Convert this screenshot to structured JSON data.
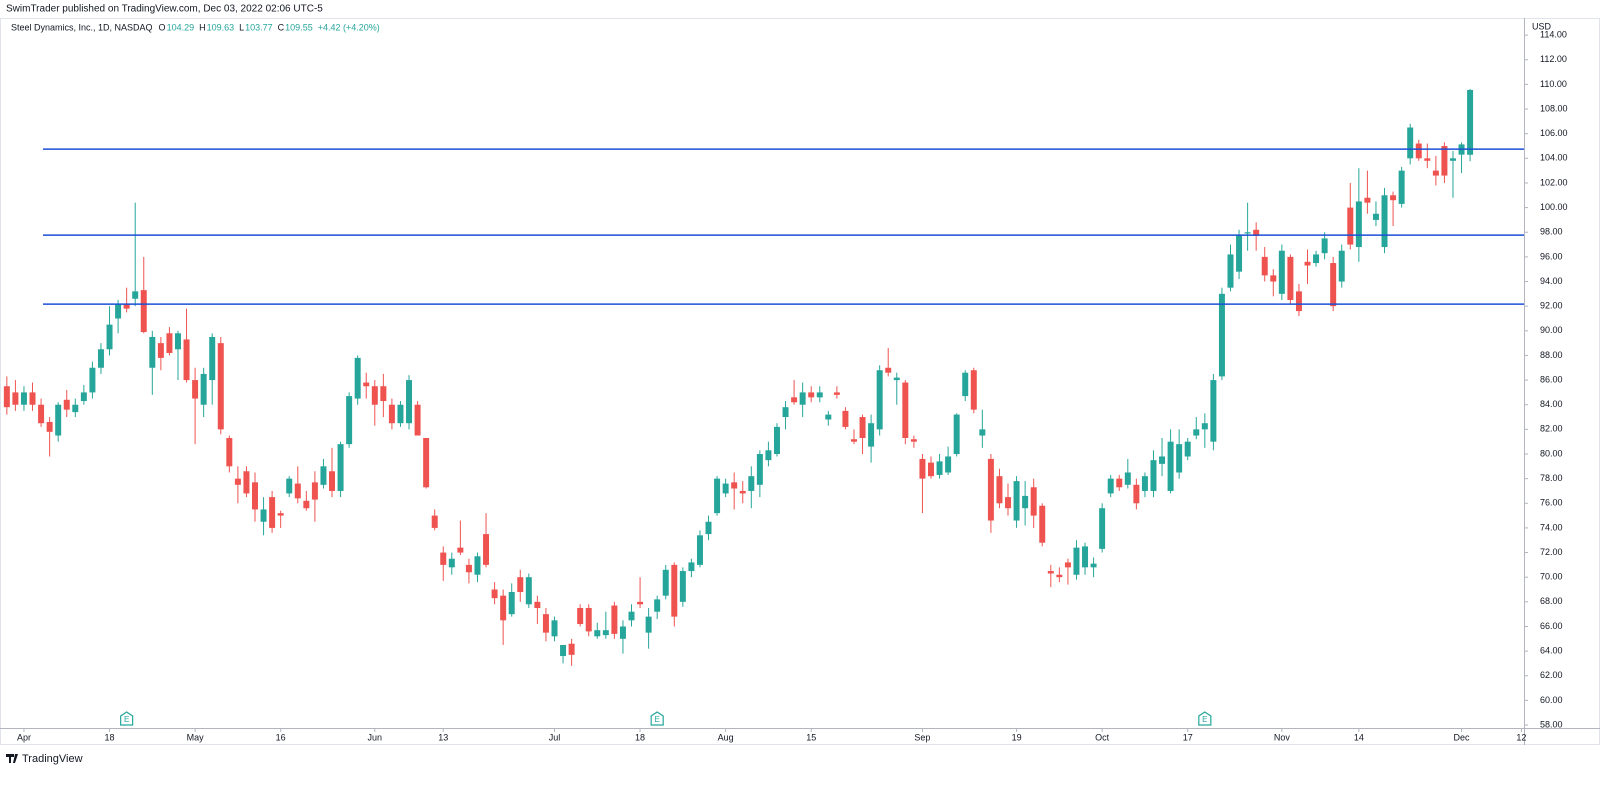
{
  "header": "SwimTrader published on TradingView.com, Dec 03, 2022 02:06 UTC-5",
  "footer": "TradingView",
  "chart_data": {
    "type": "candlestick",
    "title": "Steel Dynamics, Inc., 1D, NASDAQ",
    "legend_ohlc": [
      {
        "label": "O",
        "value": 104.29
      },
      {
        "label": "H",
        "value": 109.63
      },
      {
        "label": "L",
        "value": 103.77
      },
      {
        "label": "C",
        "value": 109.55
      }
    ],
    "change": "+4.42 (+4.20%)",
    "currency": "USD",
    "up_color": "#26a69a",
    "down_color": "#ef5350",
    "level_color": "#1c4fd6",
    "open": [
      85.5,
      85,
      84,
      85,
      84,
      82.6,
      81.5,
      84.4,
      83.4,
      84.3,
      85,
      87,
      88.5,
      91,
      92.2,
      92.6,
      93.3,
      87,
      89,
      89.8,
      88.5,
      89.3,
      86,
      84,
      86,
      89,
      81.3,
      78,
      78.6,
      77.7,
      74.5,
      76.5,
      75.2,
      76.8,
      77.6,
      76.2,
      77.7,
      77.5,
      78.6,
      77,
      80.8,
      84.5,
      85.8,
      85.5,
      85.5,
      84,
      82.5,
      82.5,
      84,
      81.3,
      75,
      72,
      70.8,
      72.4,
      71,
      70.2,
      73.5,
      69,
      68.5,
      67,
      70,
      67.8,
      68,
      67,
      65.2,
      63.6,
      64.6,
      67.5,
      67.5,
      65.2,
      65.3,
      67.7,
      65,
      66.5,
      68,
      65.5,
      67.2,
      68.5,
      71,
      68,
      70.5,
      71,
      73.5,
      75.2,
      76.8,
      77.7,
      77,
      77,
      77.5,
      79.5,
      80,
      83,
      84.6,
      84,
      85,
      84.6,
      82.8,
      85,
      83.5,
      81.2,
      83,
      80.6,
      82,
      87,
      86,
      85.8,
      81.2,
      79.6,
      79.3,
      78.3,
      78.5,
      80,
      84.7,
      86.8,
      81.5,
      79.6,
      78.2,
      76.5,
      74.6,
      75.6,
      77.3,
      75.8,
      70.5,
      70.2,
      71.2,
      70.2,
      70.8,
      70.8,
      72.3,
      76.8,
      78,
      77.5,
      77.5,
      77,
      77,
      79.2,
      77,
      78.5,
      79.8,
      81.5,
      82,
      81,
      86.3,
      93.5,
      94.8,
      97.9,
      98.2,
      96,
      94.5,
      93,
      96,
      93.2,
      95.6,
      95.5,
      96.3,
      95.5,
      94,
      100,
      96.8,
      100.8,
      99,
      96.8,
      101,
      100.3,
      104,
      105.2,
      104,
      103,
      105,
      103.8,
      104.3,
      104.29
    ],
    "high": [
      86.3,
      86,
      85.5,
      85.8,
      84.5,
      83,
      84.2,
      85.2,
      84.5,
      85.6,
      87.5,
      89,
      92,
      92.5,
      93.5,
      100.4,
      96,
      90,
      89.5,
      90.3,
      90,
      91.8,
      87,
      87,
      89.8,
      89.5,
      81.5,
      79,
      79,
      78.5,
      76.5,
      77,
      75.4,
      78.2,
      79,
      77,
      78.6,
      79.6,
      80.5,
      81,
      85,
      88,
      86.6,
      86,
      86.5,
      84.5,
      84.3,
      86.4,
      84.3,
      81.3,
      75.5,
      72.5,
      72,
      74.6,
      71.5,
      72,
      75.2,
      69.6,
      69,
      69.5,
      70.6,
      70.3,
      68.5,
      67.5,
      66.8,
      64.5,
      65,
      67.8,
      67.8,
      66.3,
      67.2,
      68,
      66.5,
      67.8,
      70,
      67.5,
      68.5,
      71,
      71.2,
      70.8,
      71.5,
      73.8,
      75,
      78.2,
      78,
      78.5,
      77.8,
      79,
      80.3,
      81,
      82.5,
      84.3,
      86,
      85.8,
      85.5,
      85.5,
      83.5,
      85.5,
      83.8,
      82,
      83.2,
      83.2,
      87.2,
      88.6,
      86.6,
      86,
      81.5,
      80,
      79.8,
      80,
      80.6,
      83.3,
      86.8,
      87,
      83.6,
      80,
      78.8,
      77.6,
      78.2,
      77.8,
      78,
      76,
      71,
      70.8,
      71.5,
      73,
      72.8,
      71.6,
      76,
      78.3,
      78.3,
      79.6,
      78,
      78.5,
      80.3,
      81.3,
      82,
      82,
      81.3,
      83,
      83.3,
      86.5,
      93.5,
      97,
      98.2,
      100.4,
      98.8,
      96.8,
      95,
      97,
      96.2,
      93.8,
      96.6,
      96.5,
      98,
      96,
      97,
      102,
      103.2,
      103,
      100.5,
      101.6,
      101.3,
      103.3,
      106.8,
      105.5,
      105.2,
      104.2,
      105.3,
      104.6,
      105.3,
      109.63
    ],
    "low": [
      83.2,
      83.5,
      83.5,
      83.5,
      82.2,
      79.8,
      81,
      83,
      83,
      84,
      84.5,
      86.5,
      88,
      89.8,
      91.5,
      92,
      89.8,
      84.8,
      86.8,
      88,
      86,
      85.8,
      80.8,
      83,
      84,
      81.6,
      78.5,
      76,
      76.5,
      74.5,
      73.4,
      73.6,
      74,
      76.5,
      76,
      75.4,
      74.5,
      77.2,
      76.5,
      76.5,
      80.5,
      84,
      84.5,
      82.3,
      83,
      82,
      82.2,
      82,
      81.5,
      77.2,
      73.8,
      69.7,
      70.2,
      71.8,
      69.5,
      69.6,
      70.8,
      67.8,
      64.5,
      66.8,
      68,
      67.5,
      66.2,
      64.8,
      64.8,
      63,
      62.8,
      66,
      65.2,
      65,
      65,
      65,
      63.8,
      66,
      67.5,
      64.2,
      66.6,
      68.2,
      66,
      67.6,
      70,
      70.8,
      73,
      75,
      76.5,
      75.5,
      76,
      75.6,
      76.5,
      79,
      79.8,
      82,
      84,
      83,
      84.2,
      84.2,
      82.3,
      84.5,
      82,
      80.8,
      80,
      79.3,
      81.5,
      86.3,
      84,
      80.8,
      80.5,
      75.2,
      78,
      78,
      78.3,
      79.8,
      84.3,
      83.3,
      80.5,
      73.6,
      75.6,
      75,
      74,
      74.2,
      74,
      72.5,
      69.2,
      69.6,
      69.4,
      69.8,
      70.2,
      70,
      72,
      76.5,
      77,
      77.2,
      75.5,
      76.5,
      76.5,
      78.2,
      76.8,
      78,
      79.5,
      81.2,
      80.5,
      80.3,
      86,
      93.2,
      94.2,
      96.5,
      96.5,
      94,
      92.8,
      92.5,
      92.2,
      91.2,
      93.8,
      95.2,
      95.8,
      91.6,
      93.5,
      96.6,
      95.6,
      99.5,
      98.5,
      96.3,
      98.5,
      100,
      103.5,
      103.8,
      103.2,
      101.8,
      102,
      100.8,
      102.8,
      103.77
    ],
    "close": [
      83.8,
      84,
      85,
      84,
      82.5,
      81.8,
      84,
      83.6,
      84,
      85,
      87,
      88.5,
      90.5,
      92.2,
      91.8,
      93.2,
      89.9,
      89.5,
      87.8,
      88.2,
      89.8,
      86,
      84.5,
      86.5,
      89.5,
      82,
      79,
      77.5,
      76.8,
      75.5,
      75.5,
      74,
      75,
      78,
      76.4,
      75.6,
      76.3,
      79,
      77,
      80.8,
      84.7,
      87.8,
      85.5,
      84,
      84.3,
      82.5,
      84,
      86,
      81.5,
      77.3,
      74,
      71,
      71.5,
      72,
      70.4,
      71.7,
      71,
      68.3,
      66.5,
      68.8,
      68.8,
      70,
      67.5,
      65.5,
      66.5,
      64.5,
      63.7,
      66.2,
      65.6,
      65.7,
      65.7,
      65.4,
      66,
      67.2,
      67.8,
      66.8,
      68.2,
      70.6,
      66.8,
      70.5,
      71.2,
      73.4,
      74.5,
      78,
      77.6,
      77.2,
      76.8,
      78.2,
      80,
      80.3,
      82.2,
      83.8,
      84.2,
      85,
      84.6,
      85,
      83.2,
      84.8,
      82.2,
      81,
      81.3,
      82.5,
      86.8,
      86.6,
      86.2,
      81.3,
      81,
      78,
      78.2,
      79.4,
      79.8,
      83.2,
      86.6,
      83.6,
      82,
      74.6,
      76,
      75.6,
      77.8,
      76.6,
      75,
      72.8,
      70.3,
      70,
      70.8,
      72.4,
      72.5,
      71.1,
      75.6,
      78,
      77.3,
      78.5,
      76,
      78.2,
      79.5,
      79.8,
      81,
      80.8,
      81,
      82,
      82.5,
      86,
      93,
      96.2,
      97.8,
      98,
      97.7,
      94.5,
      94,
      96.5,
      92.5,
      91.6,
      95.3,
      96.2,
      97.5,
      92,
      96.5,
      97,
      100.5,
      100.4,
      99.5,
      101,
      100.6,
      103,
      106.5,
      104,
      103.8,
      102.6,
      102.6,
      104,
      105.13,
      109.55
    ],
    "levels": [
      104.75,
      97.77,
      92.17
    ],
    "earnings": [
      {
        "index": 14,
        "label": "E"
      },
      {
        "index": 76,
        "label": "E"
      },
      {
        "index": 140,
        "label": "E"
      }
    ],
    "ylim": [
      57.76,
      115.39
    ],
    "yticks": [
      {
        "value": 58,
        "label": "58.00"
      },
      {
        "value": 60,
        "label": "60.00"
      },
      {
        "value": 62,
        "label": "62.00"
      },
      {
        "value": 64,
        "label": "64.00"
      },
      {
        "value": 66,
        "label": "66.00"
      },
      {
        "value": 68,
        "label": "68.00"
      },
      {
        "value": 70,
        "label": "70.00"
      },
      {
        "value": 72,
        "label": "72.00"
      },
      {
        "value": 74,
        "label": "74.00"
      },
      {
        "value": 76,
        "label": "76.00"
      },
      {
        "value": 78,
        "label": "78.00"
      },
      {
        "value": 80,
        "label": "80.00"
      },
      {
        "value": 82,
        "label": "82.00"
      },
      {
        "value": 84,
        "label": "84.00"
      },
      {
        "value": 86,
        "label": "86.00"
      },
      {
        "value": 88,
        "label": "88.00"
      },
      {
        "value": 90,
        "label": "90.00"
      },
      {
        "value": 92,
        "label": "92.00"
      },
      {
        "value": 94,
        "label": "94.00"
      },
      {
        "value": 96,
        "label": "96.00"
      },
      {
        "value": 98,
        "label": "98.00"
      },
      {
        "value": 100,
        "label": "100.00"
      },
      {
        "value": 102,
        "label": "102.00"
      },
      {
        "value": 104,
        "label": "104.00"
      },
      {
        "value": 106,
        "label": "106.00"
      },
      {
        "value": 108,
        "label": "108.00"
      },
      {
        "value": 110,
        "label": "110.00"
      },
      {
        "value": 112,
        "label": "112.00"
      },
      {
        "value": 114,
        "label": "114.00"
      }
    ],
    "xlim": [
      -0.8,
      177.3
    ],
    "xticks": [
      {
        "value": 2,
        "label": "Apr"
      },
      {
        "value": 12,
        "label": "18"
      },
      {
        "value": 22,
        "label": "May"
      },
      {
        "value": 32,
        "label": "16"
      },
      {
        "value": 43,
        "label": "Jun"
      },
      {
        "value": 51,
        "label": "13"
      },
      {
        "value": 64,
        "label": "Jul"
      },
      {
        "value": 74,
        "label": "18"
      },
      {
        "value": 84,
        "label": "Aug"
      },
      {
        "value": 94,
        "label": "15"
      },
      {
        "value": 107,
        "label": "Sep"
      },
      {
        "value": 118,
        "label": "19"
      },
      {
        "value": 128,
        "label": "Oct"
      },
      {
        "value": 138,
        "label": "17"
      },
      {
        "value": 149,
        "label": "Nov"
      },
      {
        "value": 158,
        "label": "14"
      },
      {
        "value": 170,
        "label": "Dec"
      },
      {
        "value": 177,
        "label": "12"
      }
    ]
  }
}
